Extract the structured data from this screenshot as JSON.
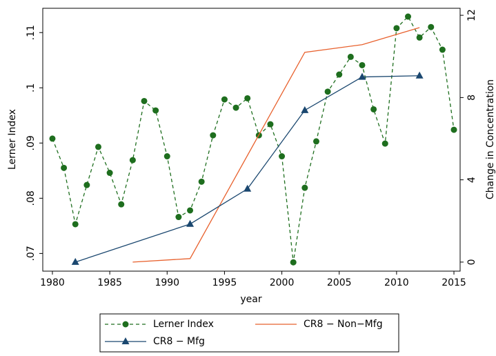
{
  "chart_data": {
    "type": "line",
    "x_label": "year",
    "y_label": "Lerner Index",
    "y2_label": "Change in Concentration",
    "xlim": [
      1979.16,
      2015.54
    ],
    "xticks": [
      1980,
      1985,
      1990,
      1995,
      2000,
      2005,
      2010,
      2015
    ],
    "ylim": [
      0.0668,
      0.1144
    ],
    "yticks": [
      {
        "value": 0.07,
        "label": ".07"
      },
      {
        "value": 0.08,
        "label": ".08"
      },
      {
        "value": 0.09,
        "label": ".09"
      },
      {
        "value": 0.1,
        "label": ".1"
      },
      {
        "value": 0.11,
        "label": ".11"
      }
    ],
    "y2lim": [
      -0.44,
      12.34
    ],
    "y2ticks": [
      0,
      4,
      8,
      12
    ],
    "series": [
      {
        "name": "Lerner Index",
        "color": "#1e6e1e",
        "dashed": true,
        "marker": "circle",
        "x": [
          1980,
          1981,
          1982,
          1983,
          1984,
          1985,
          1986,
          1987,
          1988,
          1989,
          1990,
          1991,
          1992,
          1993,
          1994,
          1995,
          1996,
          1997,
          1998,
          1999,
          2000,
          2001,
          2002,
          2003,
          2004,
          2005,
          2006,
          2007,
          2008,
          2009,
          2010,
          2011,
          2012,
          2013,
          2014,
          2015
        ],
        "values": [
          0.0908,
          0.0855,
          0.0753,
          0.0824,
          0.0893,
          0.0846,
          0.0789,
          0.0869,
          0.0976,
          0.0959,
          0.0876,
          0.0766,
          0.0778,
          0.083,
          0.0914,
          0.0979,
          0.0964,
          0.0981,
          0.0914,
          0.0934,
          0.0876,
          0.0684,
          0.0819,
          0.0903,
          0.0993,
          0.1024,
          0.1056,
          0.1041,
          0.0961,
          0.0899,
          0.1108,
          0.1129,
          0.1091,
          0.111,
          0.1069,
          0.0924
        ]
      },
      {
        "name": "CR8 − Non−Mfg",
        "color": "#e8602c",
        "dashed": false,
        "marker": "none",
        "axis": "y2",
        "x": [
          1987,
          1992,
          2002,
          2007,
          2012
        ],
        "values": [
          0,
          0.17,
          10.2,
          10.57,
          11.4
        ]
      },
      {
        "name": "CR8 − Mfg",
        "color": "#1a476f",
        "dashed": false,
        "marker": "triangle",
        "axis": "y2",
        "x": [
          1982,
          1992,
          1997,
          2002,
          2007,
          2012
        ],
        "values": [
          0,
          1.85,
          3.56,
          7.38,
          9.0,
          9.06
        ]
      }
    ]
  }
}
